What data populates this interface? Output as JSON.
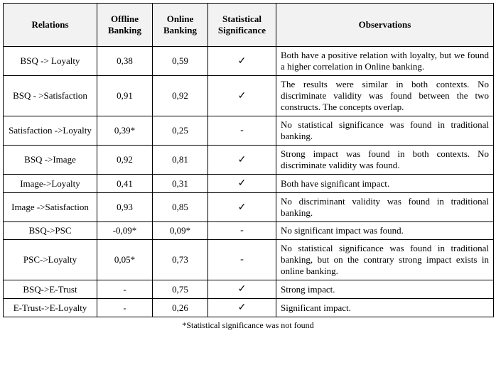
{
  "table": {
    "columns": {
      "relations": "Relations",
      "offline": "Offline Banking",
      "online": "Online Banking",
      "significance": "Statistical Significance",
      "observations": "Observations"
    },
    "check_mark": "✓",
    "dash": "-",
    "rows": [
      {
        "relation": "BSQ -> Loyalty",
        "offline": "0,38",
        "online": "0,59",
        "sig": "✓",
        "obs": "Both have a positive relation with loyalty, but we found a higher correlation in Online banking."
      },
      {
        "relation": "BSQ - >Satisfaction",
        "offline": "0,91",
        "online": "0,92",
        "sig": "✓",
        "obs": "The results were similar in both contexts. No discriminate validity was found between the two constructs. The concepts overlap."
      },
      {
        "relation": "Satisfaction ->Loyalty",
        "offline": "0,39*",
        "online": "0,25",
        "sig": "-",
        "obs": "No statistical significance was found in traditional banking."
      },
      {
        "relation": "BSQ ->Image",
        "offline": "0,92",
        "online": "0,81",
        "sig": "✓",
        "obs": "Strong impact was found in both contexts. No discriminate validity was found."
      },
      {
        "relation": "Image->Loyalty",
        "offline": "0,41",
        "online": "0,31",
        "sig": "✓",
        "obs": "Both have significant impact."
      },
      {
        "relation": "Image ->Satisfaction",
        "offline": "0,93",
        "online": "0,85",
        "sig": "✓",
        "obs": "No discriminant validity was found in traditional banking."
      },
      {
        "relation": "BSQ->PSC",
        "offline": "-0,09*",
        "online": "0,09*",
        "sig": "-",
        "obs": "No significant impact was found."
      },
      {
        "relation": "PSC->Loyalty",
        "offline": "0,05*",
        "online": "0,73",
        "sig": "-",
        "obs": "No statistical significance was found in traditional banking, but on the contrary strong impact exists in online banking."
      },
      {
        "relation": "BSQ->E-Trust",
        "offline": "-",
        "online": "0,75",
        "sig": "✓",
        "obs": "Strong impact."
      },
      {
        "relation": "E-Trust->E-Loyalty",
        "offline": "-",
        "online": "0,26",
        "sig": "✓",
        "obs": "Significant impact."
      }
    ],
    "footnote": "*Statistical significance was not found"
  }
}
